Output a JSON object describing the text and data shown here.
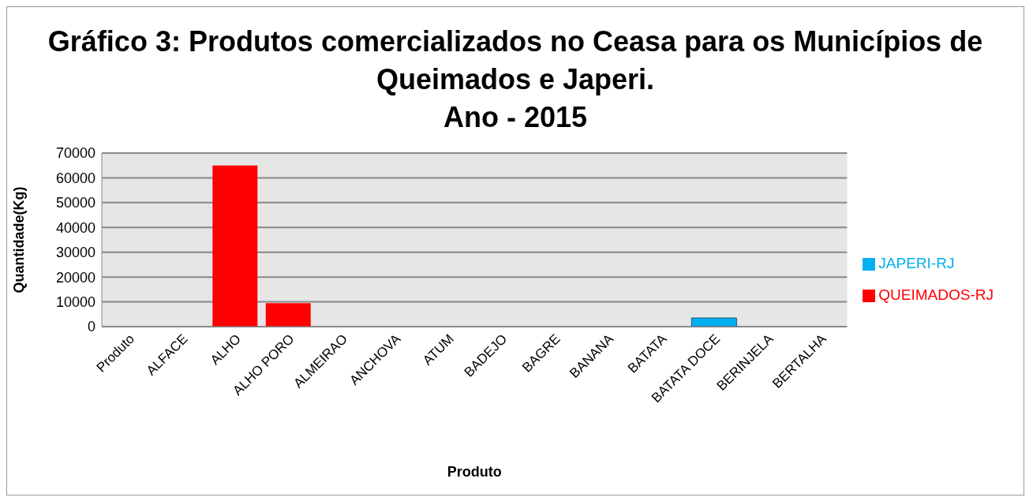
{
  "chart_data": {
    "type": "bar",
    "title": "Gráfico 3: Produtos comercializados no Ceasa para os Municípios de Queimados e Japeri.\nAno - 2015",
    "xlabel": "Produto",
    "ylabel": "Quantidade(Kg)",
    "categories": [
      "Produto",
      "ALFACE",
      "ALHO",
      "ALHO PORO",
      "ALMEIRAO",
      "ANCHOVA",
      "ATUM",
      "BADEJO",
      "BAGRE",
      "BANANA",
      "BATATA",
      "BATATA DOCE",
      "BERINJELA",
      "BERTALHA"
    ],
    "stacked": true,
    "series": [
      {
        "name": "JAPERI-RJ",
        "color": "#00b0f0",
        "values": [
          null,
          null,
          null,
          null,
          null,
          null,
          null,
          null,
          null,
          null,
          null,
          3500,
          null,
          null
        ]
      },
      {
        "name": "QUEIMADOS-RJ",
        "color": "#ff0000",
        "values": [
          null,
          null,
          65000,
          9500,
          null,
          null,
          null,
          null,
          null,
          null,
          null,
          null,
          null,
          null
        ]
      }
    ],
    "ylim": [
      0,
      70000
    ],
    "yticks": [
      0,
      10000,
      20000,
      30000,
      40000,
      50000,
      60000,
      70000
    ],
    "grid": "y",
    "legend": "right"
  }
}
